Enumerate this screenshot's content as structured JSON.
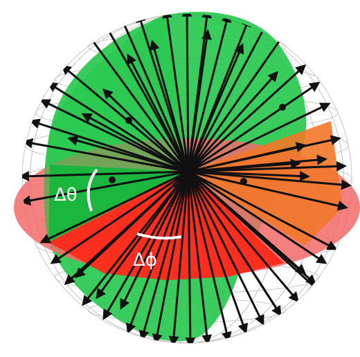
{
  "labels": {
    "delta_theta": "Δθ",
    "delta_phi": "Δϕ"
  },
  "colors": {
    "background": "#ffffff",
    "sphere_wire": "#c8c8c8",
    "green_plane": "#22c84a",
    "red_plane": "#f26a6a",
    "orange_wedge": "#f2782a",
    "red_wedge": "#ff2a1a",
    "vector": "#111111",
    "label": "#ffffff"
  },
  "icons": [
    "arrow-vector-icon",
    "sphere-wireframe-icon",
    "angle-arc-icon"
  ]
}
